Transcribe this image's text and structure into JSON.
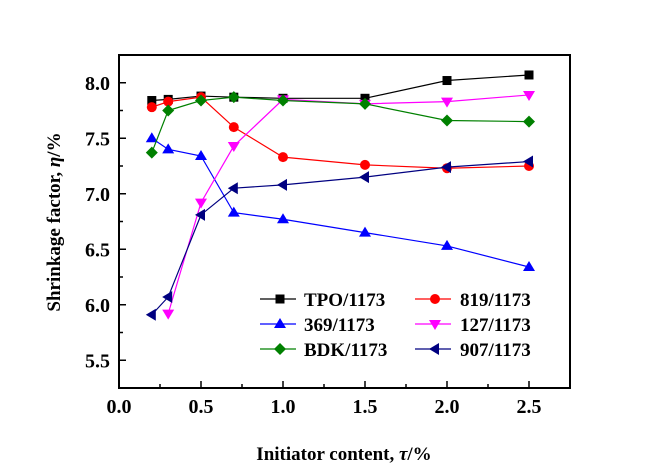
{
  "chart_data": {
    "type": "line",
    "title": "",
    "xlabel": "Initiator content, ",
    "xlabel_symbol": "τ",
    "xlabel_unit": "/%",
    "ylabel": "Shrinkage factor, ",
    "ylabel_symbol": "η",
    "ylabel_unit": "/%",
    "xlim": [
      0,
      2.75
    ],
    "ylim": [
      5.25,
      8.25
    ],
    "xticks": [
      "0.0",
      "0.5",
      "1.0",
      "1.5",
      "2.0",
      "2.5"
    ],
    "xtick_values": [
      0,
      0.5,
      1.0,
      1.5,
      2.0,
      2.5
    ],
    "yticks": [
      "5.5",
      "6.0",
      "6.5",
      "7.0",
      "7.5",
      "8.0"
    ],
    "ytick_values": [
      5.5,
      6.0,
      6.5,
      7.0,
      7.5,
      8.0
    ],
    "grid": false,
    "legend_position": "bottom-right",
    "series": [
      {
        "name": "TPO/1173",
        "color": "#000000",
        "marker": "square",
        "x": [
          0.2,
          0.3,
          0.5,
          0.7,
          1.0,
          1.5,
          2.0,
          2.5
        ],
        "y": [
          7.84,
          7.85,
          7.88,
          7.87,
          7.86,
          7.86,
          8.02,
          8.07
        ]
      },
      {
        "name": "819/1173",
        "color": "#ff0000",
        "marker": "circle",
        "x": [
          0.2,
          0.3,
          0.5,
          0.7,
          1.0,
          1.5,
          2.0,
          2.5
        ],
        "y": [
          7.78,
          7.83,
          7.87,
          7.6,
          7.33,
          7.26,
          7.23,
          7.25
        ]
      },
      {
        "name": "369/1173",
        "color": "#0000ff",
        "marker": "triangle-up",
        "x": [
          0.2,
          0.3,
          0.5,
          0.7,
          1.0,
          1.5,
          2.0,
          2.5
        ],
        "y": [
          7.5,
          7.4,
          7.34,
          6.83,
          6.77,
          6.65,
          6.53,
          6.34
        ]
      },
      {
        "name": "127/1173",
        "color": "#ff00ff",
        "marker": "triangle-down",
        "x": [
          0.3,
          0.5,
          0.7,
          1.0,
          1.5,
          2.0,
          2.5
        ],
        "y": [
          5.92,
          6.92,
          7.43,
          7.85,
          7.81,
          7.83,
          7.89
        ]
      },
      {
        "name": "BDK/1173",
        "color": "#008000",
        "marker": "diamond",
        "x": [
          0.2,
          0.3,
          0.5,
          0.7,
          1.0,
          1.5,
          2.0,
          2.5
        ],
        "y": [
          7.37,
          7.75,
          7.84,
          7.87,
          7.84,
          7.81,
          7.66,
          7.65
        ]
      },
      {
        "name": "907/1173",
        "color": "#000080",
        "marker": "triangle-left",
        "x": [
          0.2,
          0.3,
          0.5,
          0.7,
          1.0,
          1.5,
          2.0,
          2.5
        ],
        "y": [
          5.91,
          6.07,
          6.81,
          7.05,
          7.08,
          7.15,
          7.24,
          7.29
        ]
      }
    ]
  }
}
